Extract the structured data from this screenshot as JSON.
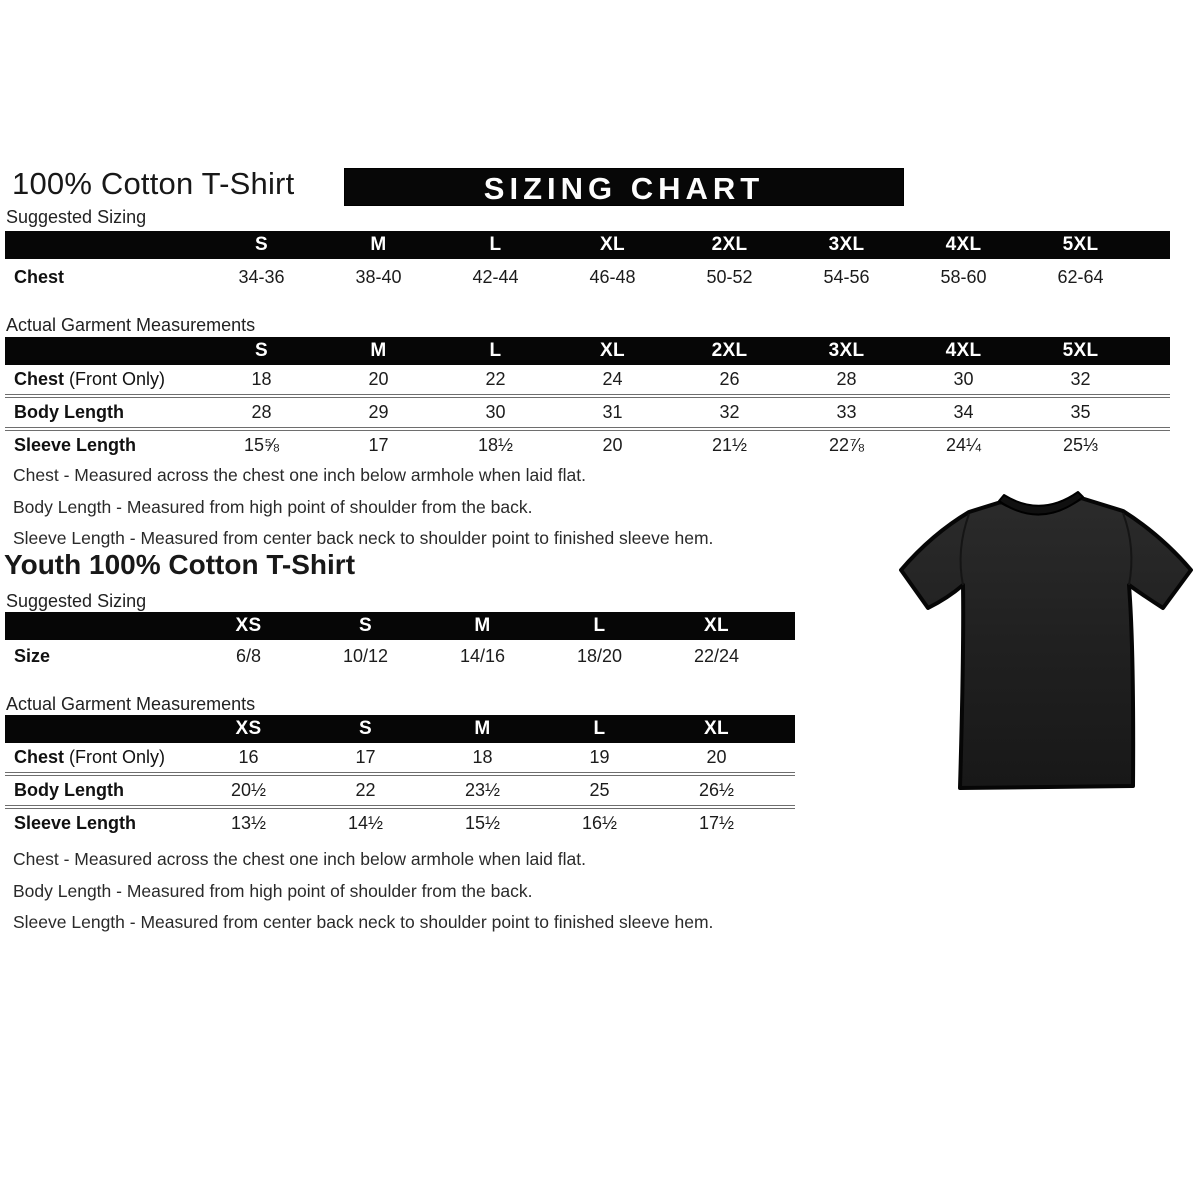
{
  "adult": {
    "title": "100% Cotton T-Shirt",
    "banner": "SIZING CHART",
    "suggested_label": "Suggested Sizing",
    "actual_label": "Actual Garment Measurements",
    "suggested": {
      "sizes": [
        "S",
        "M",
        "L",
        "XL",
        "2XL",
        "3XL",
        "4XL",
        "5XL"
      ],
      "rows": [
        {
          "label": "Chest",
          "suffix": "",
          "values": [
            "34-36",
            "38-40",
            "42-44",
            "46-48",
            "50-52",
            "54-56",
            "58-60",
            "62-64"
          ]
        }
      ]
    },
    "actual": {
      "sizes": [
        "S",
        "M",
        "L",
        "XL",
        "2XL",
        "3XL",
        "4XL",
        "5XL"
      ],
      "rows": [
        {
          "label": "Chest",
          "suffix": " (Front Only)",
          "values": [
            "18",
            "20",
            "22",
            "24",
            "26",
            "28",
            "30",
            "32"
          ]
        },
        {
          "label": "Body Length",
          "suffix": "",
          "values": [
            "28",
            "29",
            "30",
            "31",
            "32",
            "33",
            "34",
            "35"
          ]
        },
        {
          "label": "Sleeve Length",
          "suffix": "",
          "values": [
            "15⅝",
            "17",
            "18½",
            "20",
            "21½",
            "22⅞",
            "24¼",
            "25⅓"
          ]
        }
      ]
    },
    "notes": [
      "Chest - Measured across the chest one inch below armhole when laid flat.",
      "Body Length - Measured from high point of shoulder from the back.",
      "Sleeve Length - Measured from center back neck to shoulder point to finished sleeve hem."
    ]
  },
  "youth": {
    "title": "Youth 100% Cotton T-Shirt",
    "suggested_label": "Suggested Sizing",
    "actual_label": "Actual Garment Measurements",
    "suggested": {
      "sizes": [
        "XS",
        "S",
        "M",
        "L",
        "XL"
      ],
      "rows": [
        {
          "label": "Size",
          "suffix": "",
          "values": [
            "6/8",
            "10/12",
            "14/16",
            "18/20",
            "22/24"
          ]
        }
      ]
    },
    "actual": {
      "sizes": [
        "XS",
        "S",
        "M",
        "L",
        "XL"
      ],
      "rows": [
        {
          "label": "Chest",
          "suffix": " (Front Only)",
          "values": [
            "16",
            "17",
            "18",
            "19",
            "20"
          ]
        },
        {
          "label": "Body Length",
          "suffix": "",
          "values": [
            "20½",
            "22",
            "23½",
            "25",
            "26½"
          ]
        },
        {
          "label": "Sleeve Length",
          "suffix": "",
          "values": [
            "13½",
            "14½",
            "15½",
            "16½",
            "17½"
          ]
        }
      ]
    },
    "notes": [
      "Chest - Measured across the chest one inch below armhole when laid flat.",
      "Body Length - Measured from high point of shoulder from the back.",
      "Sleeve Length - Measured from center back neck to shoulder point to finished sleeve hem."
    ]
  },
  "tshirt_image": {
    "label": "black-cotton-tshirt-photo",
    "shirt_color": "#1f1f1f",
    "outline_color": "#060606"
  }
}
